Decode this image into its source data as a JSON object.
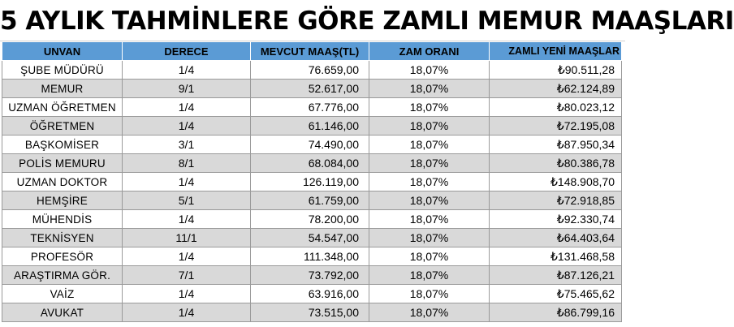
{
  "title": "5 AYLIK TAHMİNLERE GÖRE ZAMLI MEMUR MAAŞLARI",
  "headers": [
    "UNVAN",
    "DERECE",
    "MEVCUT MAAŞ(TL)",
    "ZAM ORANI",
    "ZAMLI YENİ MAAŞLAR"
  ],
  "rows": [
    {
      "unvan": "ŞUBE MÜDÜRÜ",
      "derece": "1/4",
      "mevcut": "76.659,00",
      "zam": "18,07%",
      "zamli": "₺90.511,28"
    },
    {
      "unvan": "MEMUR",
      "derece": "9/1",
      "mevcut": "52.617,00",
      "zam": "18,07%",
      "zamli": "₺62.124,89"
    },
    {
      "unvan": "UZMAN ÖĞRETMEN",
      "derece": "1/4",
      "mevcut": "67.776,00",
      "zam": "18,07%",
      "zamli": "₺80.023,12"
    },
    {
      "unvan": "ÖĞRETMEN",
      "derece": "1/4",
      "mevcut": "61.146,00",
      "zam": "18,07%",
      "zamli": "₺72.195,08"
    },
    {
      "unvan": "BAŞKOMİSER",
      "derece": "3/1",
      "mevcut": "74.490,00",
      "zam": "18,07%",
      "zamli": "₺87.950,34"
    },
    {
      "unvan": "POLİS MEMURU",
      "derece": "8/1",
      "mevcut": "68.084,00",
      "zam": "18,07%",
      "zamli": "₺80.386,78"
    },
    {
      "unvan": "UZMAN DOKTOR",
      "derece": "1/4",
      "mevcut": "126.119,00",
      "zam": "18,07%",
      "zamli": "₺148.908,70"
    },
    {
      "unvan": "HEMŞİRE",
      "derece": "5/1",
      "mevcut": "61.759,00",
      "zam": "18,07%",
      "zamli": "₺72.918,85"
    },
    {
      "unvan": "MÜHENDİS",
      "derece": "1/4",
      "mevcut": "78.200,00",
      "zam": "18,07%",
      "zamli": "₺92.330,74"
    },
    {
      "unvan": "TEKNİSYEN",
      "derece": "11/1",
      "mevcut": "54.547,00",
      "zam": "18,07%",
      "zamli": "₺64.403,64"
    },
    {
      "unvan": "PROFESÖR",
      "derece": "1/4",
      "mevcut": "111.348,00",
      "zam": "18,07%",
      "zamli": "₺131.468,58"
    },
    {
      "unvan": "ARAŞTIRMA GÖR.",
      "derece": "7/1",
      "mevcut": "73.792,00",
      "zam": "18,07%",
      "zamli": "₺87.126,21"
    },
    {
      "unvan": "VAİZ",
      "derece": "1/4",
      "mevcut": "63.916,00",
      "zam": "18,07%",
      "zamli": "₺75.465,62"
    },
    {
      "unvan": "AVUKAT",
      "derece": "1/4",
      "mevcut": "73.515,00",
      "zam": "18,07%",
      "zamli": "₺86.799,16"
    }
  ],
  "colors": {
    "header_bg": "#5b9bd5",
    "stripe": "#d9d9d9"
  }
}
